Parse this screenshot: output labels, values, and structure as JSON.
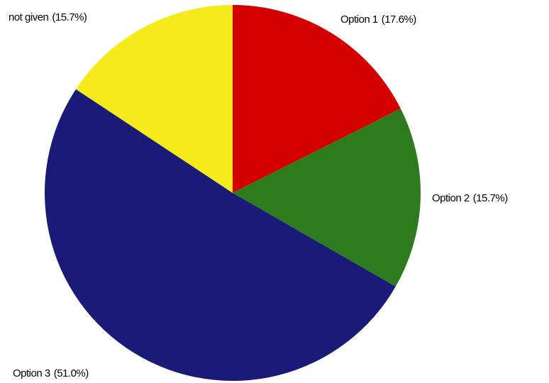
{
  "chart_data": {
    "type": "pie",
    "categories": [
      "Option 1",
      "Option 2",
      "Option 3",
      "not given"
    ],
    "values": [
      17.6,
      15.7,
      51.0,
      15.7
    ],
    "value_labels": [
      "(17.6%)",
      "(15.7%)",
      "(51.0%)",
      "(15.7%)"
    ],
    "colors": [
      "#d40000",
      "#2e7a1e",
      "#1a1a78",
      "#f5eb1c"
    ]
  }
}
